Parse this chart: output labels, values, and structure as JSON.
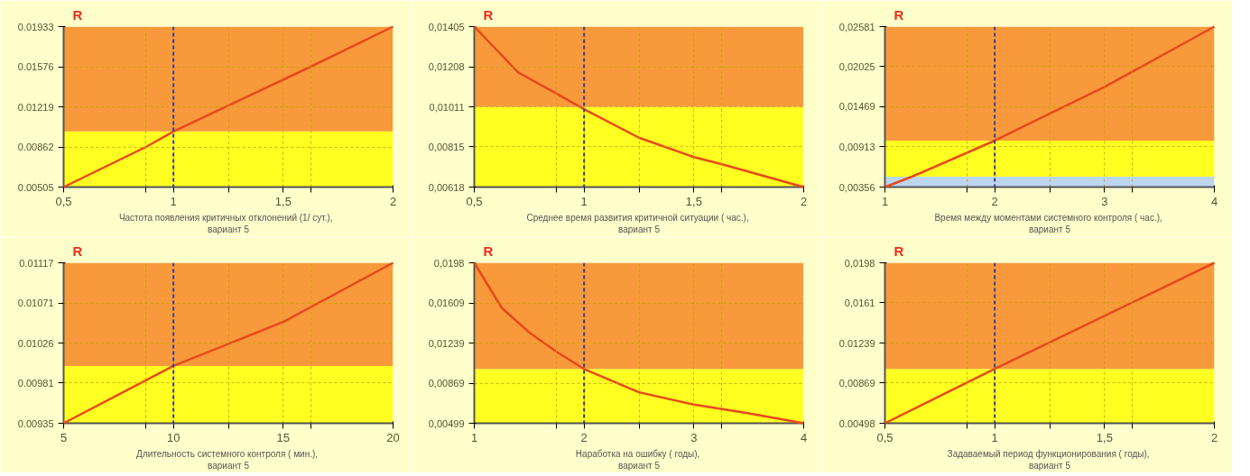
{
  "chart_data": [
    {
      "type": "line",
      "ylabel": "R",
      "xlabel": "Частота  появления критичных отклонений  (1/ сут.),\nвариант 5",
      "grid": true,
      "line_style": "solid",
      "xlim": [
        0.5,
        2
      ],
      "xticks": [
        {
          "value": 0.5,
          "label": "0,5"
        },
        {
          "value": 0.875,
          "label": null
        },
        1,
        {
          "value": 1.25,
          "label": null
        },
        {
          "value": 1.5,
          "label": "1,5"
        },
        {
          "value": 1.625,
          "label": null
        },
        2
      ],
      "ylim": [
        0.00505,
        0.01933
      ],
      "yticks": [
        0.00505,
        0.00862,
        0.01219,
        0.01576,
        0.01933
      ],
      "bands": [
        {
          "axis": "y",
          "from": 0.00505,
          "to": 0.01,
          "color": "#ffff22"
        },
        {
          "axis": "y",
          "from": 0.01,
          "to": 0.01933,
          "color": "#f89a3c"
        }
      ],
      "ref_lines": [
        {
          "axis": "x",
          "value": 1,
          "color": "#3a3a9a",
          "line_style": "dashed"
        }
      ],
      "series": [
        {
          "color": "#e8481c",
          "x": [
            0.5,
            0.875,
            1,
            1.625,
            2
          ],
          "values": [
            0.00505,
            0.00862,
            0.01,
            0.01576,
            0.01933
          ]
        }
      ]
    },
    {
      "type": "line",
      "ylabel": "R",
      "xlabel": "Среднее время развития критичной ситуации  ( час.),\nвариант 5",
      "grid": true,
      "line_style": "solid",
      "xlim": [
        0.5,
        2
      ],
      "xticks": [
        {
          "value": 0.5,
          "label": "0,5"
        },
        {
          "value": 0.875,
          "label": null
        },
        1,
        {
          "value": 1.25,
          "label": null
        },
        {
          "value": 1.5,
          "label": "1,5"
        },
        {
          "value": 1.625,
          "label": null
        },
        2
      ],
      "ylim": [
        0.00618,
        0.01405
      ],
      "yticks": [
        {
          "value": 0.00618,
          "label": "0,00618"
        },
        {
          "value": 0.00815,
          "label": "0,00815"
        },
        {
          "value": 0.01011,
          "label": "0,01011"
        },
        {
          "value": 0.01208,
          "label": "0,01208"
        },
        {
          "value": 0.01405,
          "label": "0,01405"
        }
      ],
      "bands": [
        {
          "axis": "y",
          "from": 0.00618,
          "to": 0.01011,
          "color": "#ffff22"
        },
        {
          "axis": "y",
          "from": 0.01011,
          "to": 0.01405,
          "color": "#f89a3c"
        }
      ],
      "ref_lines": [
        {
          "axis": "x",
          "value": 1,
          "color": "#3a3a9a",
          "line_style": "dashed"
        }
      ],
      "series": [
        {
          "color": "#e8481c",
          "x": [
            0.5,
            0.7,
            0.875,
            1,
            1.25,
            1.5,
            1.625,
            2
          ],
          "values": [
            0.01405,
            0.0118,
            0.01076,
            0.01,
            0.0086,
            0.00765,
            0.00731,
            0.00618
          ]
        }
      ]
    },
    {
      "type": "line",
      "ylabel": "R",
      "xlabel": "Время между моментами системного контроля  ( час.),\nвариант 5",
      "grid": true,
      "line_style": "solid",
      "xlim": [
        1,
        4
      ],
      "xticks": [
        1,
        {
          "value": 1.75,
          "label": null
        },
        2,
        {
          "value": 2.5,
          "label": null
        },
        3,
        {
          "value": 3.25,
          "label": null
        },
        4
      ],
      "ylim": [
        0.00356,
        0.02581
      ],
      "yticks": [
        {
          "value": 0.00356,
          "label": "0,00356"
        },
        {
          "value": 0.00913,
          "label": "0,00913"
        },
        {
          "value": 0.01469,
          "label": "0,01469"
        },
        {
          "value": 0.02025,
          "label": "0,02025"
        },
        {
          "value": 0.02581,
          "label": "0,02581"
        }
      ],
      "bands": [
        {
          "axis": "y",
          "from": 0.00356,
          "to": 0.005,
          "color": "#bcd6f0"
        },
        {
          "axis": "y",
          "from": 0.005,
          "to": 0.01,
          "color": "#ffff22"
        },
        {
          "axis": "y",
          "from": 0.01,
          "to": 0.02581,
          "color": "#f89a3c"
        }
      ],
      "ref_lines": [
        {
          "axis": "x",
          "value": 2,
          "color": "#3a3a9a",
          "line_style": "dashed"
        }
      ],
      "series": [
        {
          "color": "#e8481c",
          "x": [
            1,
            1.25,
            2,
            3,
            4
          ],
          "values": [
            0.00356,
            0.00503,
            0.01,
            0.01744,
            0.02581
          ]
        }
      ]
    },
    {
      "type": "line",
      "ylabel": "R",
      "xlabel": "Длительность системного контроля  ( мин.),\nвариант 5",
      "grid": true,
      "line_style": "solid",
      "xlim": [
        5,
        20
      ],
      "xticks": [
        5,
        {
          "value": 8.75,
          "label": null
        },
        10,
        {
          "value": 12.5,
          "label": null
        },
        15,
        {
          "value": 16.25,
          "label": null
        },
        20
      ],
      "ylim": [
        0.00935,
        0.01117
      ],
      "yticks": [
        0.00935,
        0.00981,
        0.01026,
        0.01071,
        0.01117
      ],
      "bands": [
        {
          "axis": "y",
          "from": 0.00935,
          "to": 0.01,
          "color": "#ffff22"
        },
        {
          "axis": "y",
          "from": 0.01,
          "to": 0.01117,
          "color": "#f89a3c"
        }
      ],
      "ref_lines": [
        {
          "axis": "x",
          "value": 10,
          "color": "#3a3a9a",
          "line_style": "dashed"
        }
      ],
      "series": [
        {
          "color": "#e8481c",
          "x": [
            5,
            10,
            15,
            20
          ],
          "values": [
            0.00935,
            0.01,
            0.0105,
            0.01117
          ]
        }
      ]
    },
    {
      "type": "line",
      "ylabel": "R",
      "xlabel": "Наработка на ошибку  ( годы),\nвариант 5",
      "grid": true,
      "line_style": "solid",
      "xlim": [
        1,
        4
      ],
      "xticks": [
        1,
        {
          "value": 1.75,
          "label": null
        },
        2,
        {
          "value": 2.5,
          "label": null
        },
        3,
        {
          "value": 3.25,
          "label": null
        },
        4
      ],
      "ylim": [
        0.00499,
        0.0198
      ],
      "yticks": [
        {
          "value": 0.00499,
          "label": "0,00499"
        },
        {
          "value": 0.00869,
          "label": "0,00869"
        },
        {
          "value": 0.01239,
          "label": "0,01239"
        },
        {
          "value": 0.01609,
          "label": "0,01609"
        },
        {
          "value": 0.0198,
          "label": "0,0198"
        }
      ],
      "bands": [
        {
          "axis": "y",
          "from": 0.00499,
          "to": 0.01,
          "color": "#ffff22"
        },
        {
          "axis": "y",
          "from": 0.01,
          "to": 0.0198,
          "color": "#f89a3c"
        }
      ],
      "ref_lines": [
        {
          "axis": "x",
          "value": 2,
          "color": "#3a3a9a",
          "line_style": "dashed"
        }
      ],
      "series": [
        {
          "color": "#e8481c",
          "x": [
            1,
            1.25,
            1.5,
            1.75,
            2,
            2.5,
            3,
            3.5,
            4
          ],
          "values": [
            0.0198,
            0.01564,
            0.01337,
            0.01158,
            0.01,
            0.00785,
            0.00671,
            0.0059,
            0.00499
          ]
        }
      ]
    },
    {
      "type": "line",
      "ylabel": "R",
      "xlabel": "Задаваемый период функционирования  ( годы),\nвариант 5",
      "grid": true,
      "line_style": "solid",
      "xlim": [
        0.5,
        2
      ],
      "xticks": [
        {
          "value": 0.5,
          "label": "0,5"
        },
        {
          "value": 0.875,
          "label": null
        },
        1,
        {
          "value": 1.25,
          "label": null
        },
        {
          "value": 1.5,
          "label": "1,5"
        },
        {
          "value": 1.625,
          "label": null
        },
        2
      ],
      "ylim": [
        0.00498,
        0.0198
      ],
      "yticks": [
        {
          "value": 0.00498,
          "label": "0.00498"
        },
        {
          "value": 0.00869,
          "label": "0,00869"
        },
        {
          "value": 0.01239,
          "label": "0.01239"
        },
        {
          "value": 0.0161,
          "label": "0,0161"
        },
        {
          "value": 0.0198,
          "label": "0,0198"
        }
      ],
      "bands": [
        {
          "axis": "y",
          "from": 0.00498,
          "to": 0.01,
          "color": "#ffff22"
        },
        {
          "axis": "y",
          "from": 0.01,
          "to": 0.0198,
          "color": "#f89a3c"
        }
      ],
      "ref_lines": [
        {
          "axis": "x",
          "value": 1,
          "color": "#3a3a9a",
          "line_style": "dashed"
        }
      ],
      "series": [
        {
          "color": "#e8481c",
          "x": [
            0.5,
            1,
            2
          ],
          "values": [
            0.00498,
            0.01,
            0.0198
          ]
        }
      ]
    }
  ]
}
